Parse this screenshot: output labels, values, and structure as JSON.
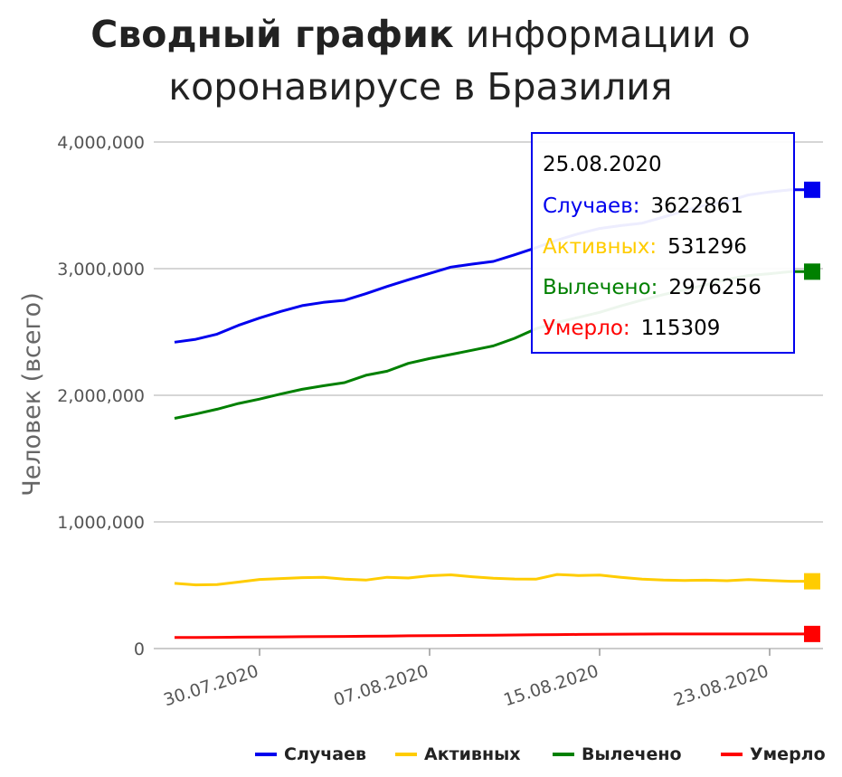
{
  "chart_data": {
    "type": "line",
    "title_bold": "Сводный график",
    "title_rest_line1": "информации о",
    "title_line2": "коронавирусе в Бразилия",
    "ylabel": "Человек (всего)",
    "ylim": [
      0,
      4000000
    ],
    "yticks": [
      0,
      1000000,
      2000000,
      3000000,
      4000000
    ],
    "ytick_labels": [
      "0",
      "1,000,000",
      "2,000,000",
      "3,000,000",
      "4,000,000"
    ],
    "x": [
      "26.07.2020",
      "27.07.2020",
      "28.07.2020",
      "29.07.2020",
      "30.07.2020",
      "31.07.2020",
      "01.08.2020",
      "02.08.2020",
      "03.08.2020",
      "04.08.2020",
      "05.08.2020",
      "06.08.2020",
      "07.08.2020",
      "08.08.2020",
      "09.08.2020",
      "10.08.2020",
      "11.08.2020",
      "12.08.2020",
      "13.08.2020",
      "14.08.2020",
      "15.08.2020",
      "16.08.2020",
      "17.08.2020",
      "18.08.2020",
      "19.08.2020",
      "20.08.2020",
      "21.08.2020",
      "22.08.2020",
      "23.08.2020",
      "24.08.2020",
      "25.08.2020"
    ],
    "xtick_labels": [
      "30.07.2020",
      "07.08.2020",
      "15.08.2020",
      "23.08.2020"
    ],
    "series": [
      {
        "name": "Случаев",
        "color": "#0000ee",
        "values": [
          2419091,
          2442375,
          2483191,
          2552265,
          2610102,
          2662485,
          2707877,
          2733677,
          2750318,
          2801921,
          2859073,
          2912212,
          2962442,
          3012412,
          3035422,
          3057470,
          3109630,
          3164785,
          3224876,
          3275520,
          3317096,
          3340197,
          3359570,
          3407354,
          3456652,
          3501975,
          3532330,
          3582362,
          3605783,
          3622861,
          3622861
        ]
      },
      {
        "name": "Активных",
        "color": "#ffcc00",
        "values": [
          515000,
          503000,
          506000,
          525000,
          546000,
          553000,
          560000,
          562000,
          548000,
          541000,
          563000,
          557000,
          575000,
          582000,
          567000,
          555000,
          549000,
          548000,
          585000,
          577000,
          580000,
          563000,
          548000,
          541000,
          538000,
          540000,
          536000,
          545000,
          538000,
          531296,
          531296
        ]
      },
      {
        "name": "Вылечено",
        "color": "#008000",
        "values": [
          1818000,
          1852000,
          1890000,
          1935000,
          1970000,
          2010000,
          2047000,
          2075000,
          2100000,
          2158000,
          2190000,
          2252000,
          2290000,
          2322000,
          2356000,
          2390000,
          2450000,
          2525000,
          2575000,
          2615000,
          2655000,
          2706000,
          2752000,
          2795000,
          2832000,
          2873000,
          2915000,
          2946000,
          2960000,
          2976256,
          2976256
        ]
      },
      {
        "name": "Умерло",
        "color": "#ff0000",
        "values": [
          87000,
          87600,
          88500,
          89800,
          91000,
          92400,
          93600,
          94700,
          95800,
          97300,
          98600,
          100400,
          101800,
          103000,
          104300,
          105800,
          107200,
          108500,
          109900,
          111100,
          112400,
          113400,
          114300,
          114700,
          115000,
          115100,
          115200,
          115250,
          115280,
          115309,
          115309
        ]
      }
    ],
    "grid": true,
    "legend_position": "bottom-right",
    "tooltip": {
      "date": "25.08.2020",
      "rows": [
        {
          "label": "Случаев:",
          "value": "3622861",
          "color": "#0000ee"
        },
        {
          "label": "Активных:",
          "value": "531296",
          "color": "#ffcc00"
        },
        {
          "label": "Вылечено:",
          "value": "2976256",
          "color": "#008000"
        },
        {
          "label": "Умерло:",
          "value": "115309",
          "color": "#ff0000"
        }
      ]
    }
  }
}
